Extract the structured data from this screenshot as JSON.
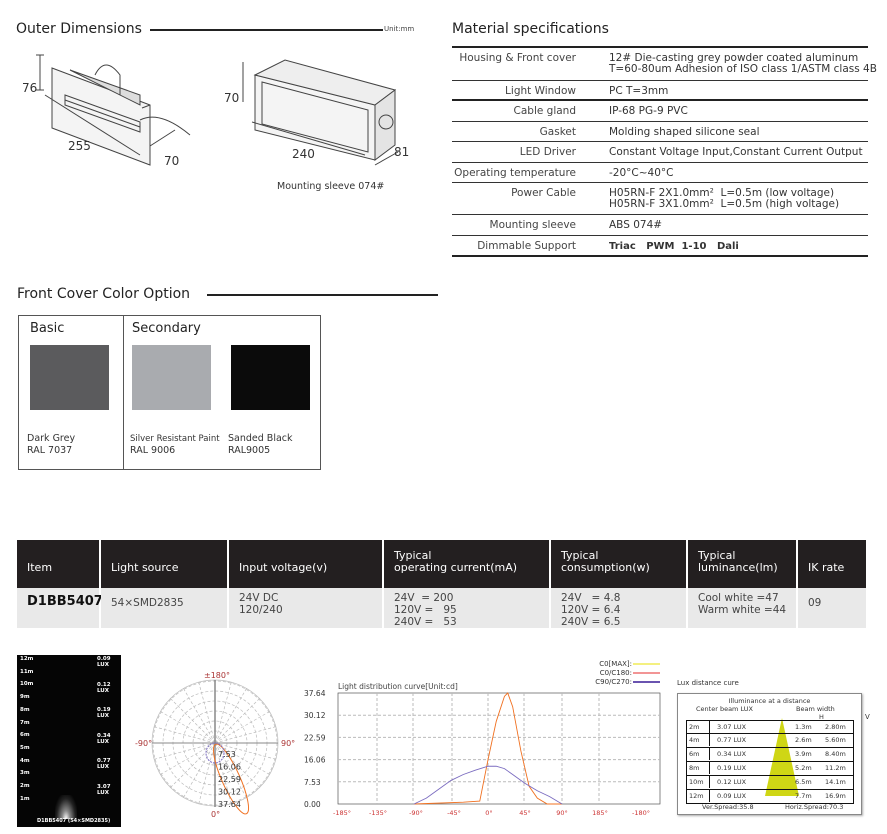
{
  "outer_dimensions": {
    "title": "Outer Dimensions",
    "unit": "Unit:mm",
    "fixture": {
      "height": "76",
      "length": "255",
      "depth": "70"
    },
    "sleeve": {
      "height": "70",
      "length": "240",
      "depth": "81",
      "caption": "Mounting sleeve 074#"
    }
  },
  "material_specs": {
    "title": "Material specifications",
    "rows": [
      {
        "label": "Housing & Front cover",
        "value": "12# Die-casting grey powder coated aluminum\nT=60-80um Adhesion of ISO class 1/ASTM class 4B"
      },
      {
        "label": "Light Window",
        "value": "PC T=3mm"
      },
      {
        "label": "Cable gland",
        "value": "IP-68 PG-9 PVC"
      },
      {
        "label": "Gasket",
        "value": "Molding shaped silicone seal"
      },
      {
        "label": "LED Driver",
        "value": "Constant Voltage Input,Constant Current Output"
      },
      {
        "label": "Operating temperature",
        "value": "-20°C~40°C"
      },
      {
        "label": "Power Cable",
        "value": "H05RN-F 2X1.0mm²  L=0.5m (low voltage)\nH05RN-F 3X1.0mm²  L=0.5m (high voltage)"
      },
      {
        "label": "Mounting sleeve",
        "value": "ABS 074#"
      },
      {
        "label": "Dimmable Support",
        "value": "Triac   PWM  1-10   Dali"
      }
    ]
  },
  "color_option": {
    "title": "Front Cover  Color Option",
    "basic_label": "Basic",
    "secondary_label": "Secondary",
    "swatches": [
      {
        "name": "Dark Grey",
        "code": "RAL 7037",
        "color": "#5b5b5d"
      },
      {
        "name": "Silver Resistant Paint",
        "code": "RAL 9006",
        "color": "#a9abaf"
      },
      {
        "name": "Sanded Black",
        "code": "RAL9005",
        "color": "#0b0b0b"
      }
    ]
  },
  "product_table": {
    "headers": [
      "Item",
      "Light source",
      "Input voltage(v)",
      "Typical\noperating current(mA)",
      "Typical\nconsumption(w)",
      "Typical\nluminance(lm)",
      "IK rate"
    ],
    "row": [
      "D1BB5407",
      "54×SMD2835",
      "24V DC\n120/240",
      "24V  = 200\n120V =   95\n240V =   53",
      "24V   = 4.8\n120V = 6.4\n240V = 6.5",
      "Cool white =47\nWarm white =44",
      "09"
    ]
  },
  "lux_image": {
    "distances": [
      "12m",
      "11m",
      "10m",
      "9m",
      "8m",
      "7m",
      "6m",
      "5m",
      "4m",
      "3m",
      "2m",
      "1m"
    ],
    "lux": [
      "0.09 LUX",
      "0.12 LUX",
      "0.19 LUX",
      "0.34 LUX",
      "0.77 LUX",
      "3.07 LUX"
    ],
    "footer": "D1BB5407 (54×SMD2835)"
  },
  "polar": {
    "top": "±180°",
    "left": "-90°",
    "right": "90°",
    "bottom": "0°",
    "rings": [
      "7.53",
      "16.06",
      "22.59",
      "30.12",
      "37.64"
    ]
  },
  "chart_data": {
    "type": "line",
    "title": "Light distribution curve[Unit:cd]",
    "x_tick_labels": [
      "-185°",
      "-135°",
      "-90°",
      "-45°",
      "0°",
      "45°",
      "90°",
      "185°",
      "-180°"
    ],
    "y_tick_labels": [
      "37.64",
      "30.12",
      "22.59",
      "16.06",
      "7.53",
      "0.00"
    ],
    "ylim": [
      0,
      37.64
    ],
    "legend": [
      {
        "name": "C0[MAX]:",
        "color": "#e8e000"
      },
      {
        "name": "C0/C180:",
        "color": "#e52b2b"
      },
      {
        "name": "C90/C270:",
        "color": "#6a54b0"
      }
    ],
    "series": [
      {
        "name": "C0/C180:",
        "color": "#f07020",
        "x": [
          -90,
          -60,
          -30,
          -10,
          0,
          10,
          20,
          24,
          30,
          40,
          50,
          60,
          72,
          90
        ],
        "y": [
          0,
          0.3,
          0.6,
          1,
          15,
          28,
          36.5,
          37.64,
          33,
          18,
          6,
          2,
          0,
          0
        ]
      },
      {
        "name": "C90/C270:",
        "color": "#7b6cc0",
        "x": [
          -90,
          -75,
          -60,
          -45,
          -30,
          -15,
          0,
          10,
          20,
          30,
          45,
          60,
          75,
          90
        ],
        "y": [
          0,
          2,
          5,
          8,
          10,
          11.5,
          12.8,
          12.8,
          12,
          10,
          7,
          4.5,
          2.5,
          0
        ]
      }
    ]
  },
  "lux_distance": {
    "title": "Lux distance cure",
    "heading": "Illuminance at a distance",
    "col_center": "Center beam LUX",
    "col_width": "Beam width",
    "h_label": "H",
    "v_label": "V",
    "rows": [
      [
        "2m",
        "3.07 LUX",
        "1.3m",
        "2.80m"
      ],
      [
        "4m",
        "0.77 LUX",
        "2.6m",
        "5.60m"
      ],
      [
        "6m",
        "0.34 LUX",
        "3.9m",
        "8.40m"
      ],
      [
        "8m",
        "0.19 LUX",
        "5.2m",
        "11.2m"
      ],
      [
        "10m",
        "0.12 LUX",
        "6.5m",
        "14.1m"
      ],
      [
        "12m",
        "0.09 LUX",
        "7.7m",
        "16.9m"
      ]
    ],
    "ver_spread": "Ver.Spread:35.8",
    "horiz_spread": "Horiz.Spread:70.3"
  }
}
